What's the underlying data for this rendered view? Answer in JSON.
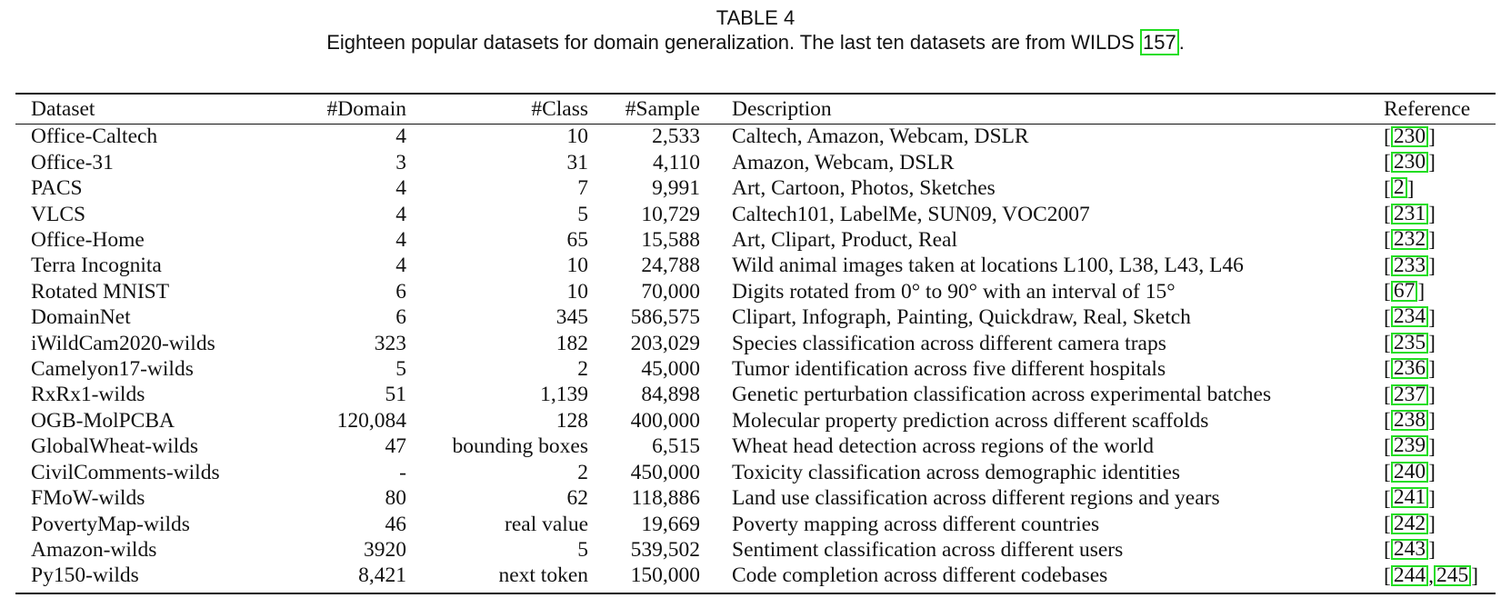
{
  "caption": {
    "label": "TABLE 4",
    "text": "Eighteen popular datasets for domain generalization. The last ten datasets are from WILDS",
    "cite": "157",
    "end": "."
  },
  "table": {
    "headers": [
      "Dataset",
      "#Domain",
      "#Class",
      "#Sample",
      "Description",
      "Reference"
    ],
    "rows": [
      {
        "dataset": "Office-Caltech",
        "domain": "4",
        "class": "10",
        "sample": "2,533",
        "description": "Caltech, Amazon, Webcam, DSLR",
        "refs": [
          "230"
        ]
      },
      {
        "dataset": "Office-31",
        "domain": "3",
        "class": "31",
        "sample": "4,110",
        "description": "Amazon, Webcam, DSLR",
        "refs": [
          "230"
        ]
      },
      {
        "dataset": "PACS",
        "domain": "4",
        "class": "7",
        "sample": "9,991",
        "description": "Art, Cartoon, Photos, Sketches",
        "refs": [
          "2"
        ]
      },
      {
        "dataset": "VLCS",
        "domain": "4",
        "class": "5",
        "sample": "10,729",
        "description": "Caltech101, LabelMe, SUN09, VOC2007",
        "refs": [
          "231"
        ]
      },
      {
        "dataset": "Office-Home",
        "domain": "4",
        "class": "65",
        "sample": "15,588",
        "description": "Art, Clipart, Product, Real",
        "refs": [
          "232"
        ]
      },
      {
        "dataset": "Terra Incognita",
        "domain": "4",
        "class": "10",
        "sample": "24,788",
        "description": "Wild animal images taken at locations L100, L38, L43, L46",
        "refs": [
          "233"
        ]
      },
      {
        "dataset": "Rotated MNIST",
        "domain": "6",
        "class": "10",
        "sample": "70,000",
        "description": "Digits rotated from 0° to 90° with an interval of 15°",
        "refs": [
          "67"
        ]
      },
      {
        "dataset": "DomainNet",
        "domain": "6",
        "class": "345",
        "sample": "586,575",
        "description": "Clipart, Infograph, Painting, Quickdraw, Real, Sketch",
        "refs": [
          "234"
        ]
      },
      {
        "dataset": "iWildCam2020-wilds",
        "domain": "323",
        "class": "182",
        "sample": "203,029",
        "description": "Species classification across different camera traps",
        "refs": [
          "235"
        ]
      },
      {
        "dataset": "Camelyon17-wilds",
        "domain": "5",
        "class": "2",
        "sample": "45,000",
        "description": "Tumor identification across five different hospitals",
        "refs": [
          "236"
        ]
      },
      {
        "dataset": "RxRx1-wilds",
        "domain": "51",
        "class": "1,139",
        "sample": "84,898",
        "description": "Genetic perturbation classification across experimental batches",
        "refs": [
          "237"
        ]
      },
      {
        "dataset": "OGB-MolPCBA",
        "domain": "120,084",
        "class": "128",
        "sample": "400,000",
        "description": "Molecular property prediction across different scaffolds",
        "refs": [
          "238"
        ]
      },
      {
        "dataset": "GlobalWheat-wilds",
        "domain": "47",
        "class": "bounding boxes",
        "sample": "6,515",
        "description": "Wheat head detection across regions of the world",
        "refs": [
          "239"
        ]
      },
      {
        "dataset": "CivilComments-wilds",
        "domain": "-",
        "class": "2",
        "sample": "450,000",
        "description": "Toxicity classification across demographic identities",
        "refs": [
          "240"
        ]
      },
      {
        "dataset": "FMoW-wilds",
        "domain": "80",
        "class": "62",
        "sample": "118,886",
        "description": "Land use classification across different regions and years",
        "refs": [
          "241"
        ]
      },
      {
        "dataset": "PovertyMap-wilds",
        "domain": "46",
        "class": "real value",
        "sample": "19,669",
        "description": "Poverty mapping across different countries",
        "refs": [
          "242"
        ]
      },
      {
        "dataset": "Amazon-wilds",
        "domain": "3920",
        "class": "5",
        "sample": "539,502",
        "description": "Sentiment classification across different users",
        "refs": [
          "243"
        ]
      },
      {
        "dataset": "Py150-wilds",
        "domain": "8,421",
        "class": "next token",
        "sample": "150,000",
        "description": "Code completion across different codebases",
        "refs": [
          "244",
          "245"
        ]
      }
    ]
  },
  "colors": {
    "citation_box": "#22dd22",
    "text": "#111111"
  }
}
